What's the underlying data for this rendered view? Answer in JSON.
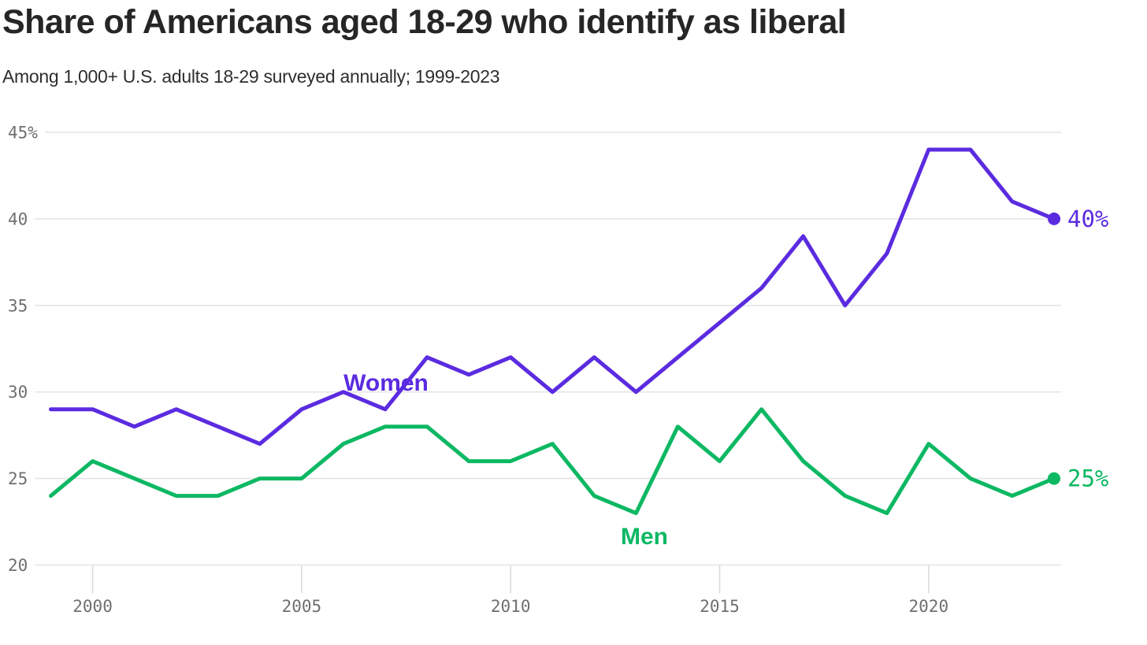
{
  "header": {
    "title": "Share of Americans aged 18-29 who identify as liberal",
    "subtitle": "Among 1,000+ U.S. adults 18-29 surveyed annually; 1999-2023"
  },
  "chart_data": {
    "type": "line",
    "title": "Share of Americans aged 18-29 who identify as liberal",
    "subtitle": "Among 1,000+ U.S. adults 18-29 surveyed annually; 1999-2023",
    "xlabel": "",
    "ylabel": "",
    "x": [
      1999,
      2000,
      2001,
      2002,
      2003,
      2004,
      2005,
      2006,
      2007,
      2008,
      2009,
      2010,
      2011,
      2012,
      2013,
      2014,
      2015,
      2016,
      2017,
      2018,
      2019,
      2020,
      2021,
      2022,
      2023
    ],
    "series": [
      {
        "name": "Women",
        "color": "#5b2be0",
        "end_label": "40%",
        "values": [
          29,
          29,
          28,
          29,
          28,
          27,
          29,
          30,
          29,
          32,
          31,
          32,
          30,
          32,
          30,
          32,
          34,
          36,
          39,
          35,
          38,
          44,
          44,
          41,
          40
        ]
      },
      {
        "name": "Men",
        "color": "#0db863",
        "end_label": "25%",
        "values": [
          24,
          26,
          25,
          24,
          24,
          25,
          25,
          27,
          28,
          28,
          26,
          26,
          27,
          24,
          23,
          28,
          26,
          29,
          26,
          24,
          23,
          27,
          25,
          24,
          25
        ]
      }
    ],
    "ylim": [
      20,
      45
    ],
    "xlim": [
      1999,
      2023
    ],
    "yticks": [
      {
        "value": 45,
        "label": "45%"
      },
      {
        "value": 40,
        "label": "40"
      },
      {
        "value": 35,
        "label": "35"
      },
      {
        "value": 30,
        "label": "30"
      },
      {
        "value": 25,
        "label": "25"
      },
      {
        "value": 20,
        "label": "20"
      }
    ],
    "xticks": [
      {
        "value": 2000,
        "label": "2000"
      },
      {
        "value": 2005,
        "label": "2005"
      },
      {
        "value": 2010,
        "label": "2010"
      },
      {
        "value": 2015,
        "label": "2015"
      },
      {
        "value": 2020,
        "label": "2020"
      }
    ],
    "grid": "horizontal",
    "legend_position": "inline-labels",
    "colors": {
      "background": "#ffffff",
      "title_text": "#262626",
      "subtitle_text": "#2e2e2e",
      "axis_text": "#6f6f6f",
      "gridline": "#e4e4e4",
      "women_line": "#5b2be0",
      "men_line": "#0db863"
    }
  }
}
